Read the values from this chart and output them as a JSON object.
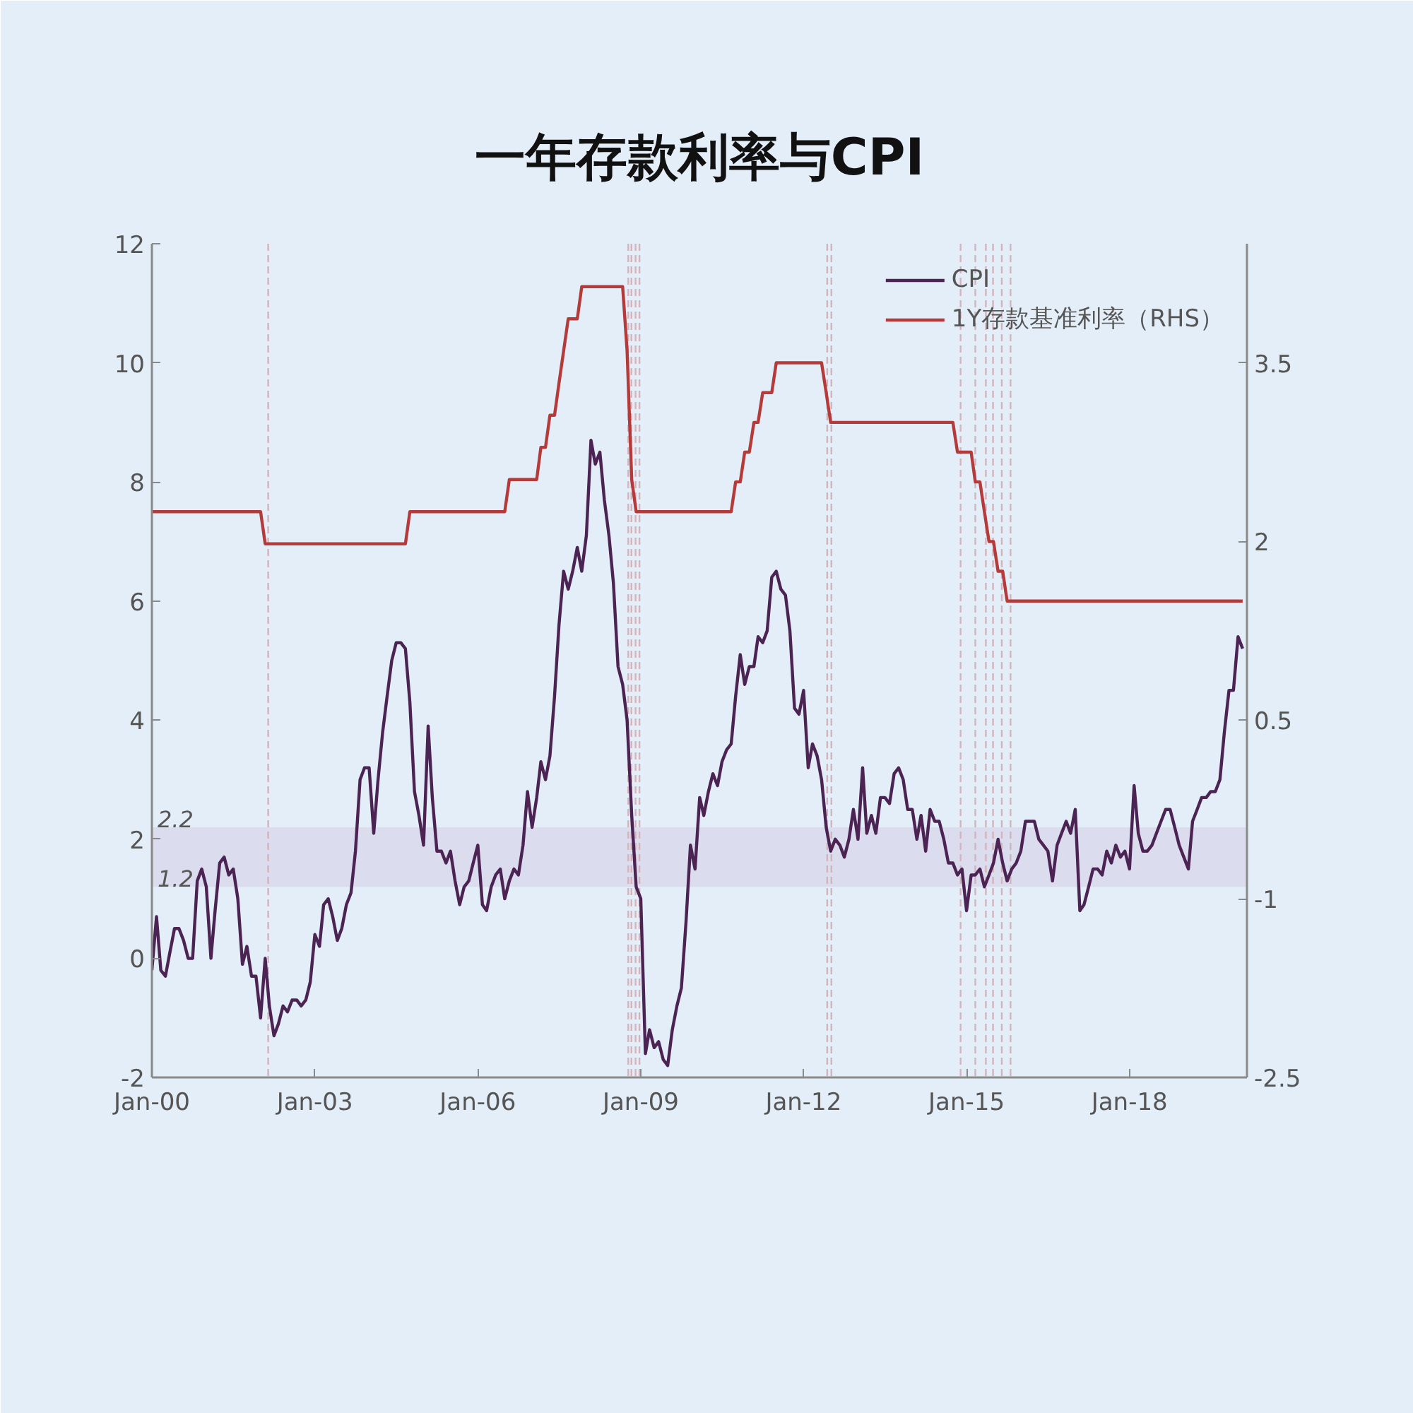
{
  "chart_data": {
    "type": "line",
    "title": "一年存款利率与CPI",
    "x": [
      "2000-01",
      "2000-02",
      "2000-03",
      "2000-04",
      "2000-05",
      "2000-06",
      "2000-07",
      "2000-08",
      "2000-09",
      "2000-10",
      "2000-11",
      "2000-12",
      "2001-01",
      "2001-02",
      "2001-03",
      "2001-04",
      "2001-05",
      "2001-06",
      "2001-07",
      "2001-08",
      "2001-09",
      "2001-10",
      "2001-11",
      "2001-12",
      "2002-01",
      "2002-02",
      "2002-03",
      "2002-04",
      "2002-05",
      "2002-06",
      "2002-07",
      "2002-08",
      "2002-09",
      "2002-10",
      "2002-11",
      "2002-12",
      "2003-01",
      "2003-02",
      "2003-03",
      "2003-04",
      "2003-05",
      "2003-06",
      "2003-07",
      "2003-08",
      "2003-09",
      "2003-10",
      "2003-11",
      "2003-12",
      "2004-01",
      "2004-02",
      "2004-03",
      "2004-04",
      "2004-05",
      "2004-06",
      "2004-07",
      "2004-08",
      "2004-09",
      "2004-10",
      "2004-11",
      "2004-12",
      "2005-01",
      "2005-02",
      "2005-03",
      "2005-04",
      "2005-05",
      "2005-06",
      "2005-07",
      "2005-08",
      "2005-09",
      "2005-10",
      "2005-11",
      "2005-12",
      "2006-01",
      "2006-02",
      "2006-03",
      "2006-04",
      "2006-05",
      "2006-06",
      "2006-07",
      "2006-08",
      "2006-09",
      "2006-10",
      "2006-11",
      "2006-12",
      "2007-01",
      "2007-02",
      "2007-03",
      "2007-04",
      "2007-05",
      "2007-06",
      "2007-07",
      "2007-08",
      "2007-09",
      "2007-10",
      "2007-11",
      "2007-12",
      "2008-01",
      "2008-02",
      "2008-03",
      "2008-04",
      "2008-05",
      "2008-06",
      "2008-07",
      "2008-08",
      "2008-09",
      "2008-10",
      "2008-11",
      "2008-12",
      "2009-01",
      "2009-02",
      "2009-03",
      "2009-04",
      "2009-05",
      "2009-06",
      "2009-07",
      "2009-08",
      "2009-09",
      "2009-10",
      "2009-11",
      "2009-12",
      "2010-01",
      "2010-02",
      "2010-03",
      "2010-04",
      "2010-05",
      "2010-06",
      "2010-07",
      "2010-08",
      "2010-09",
      "2010-10",
      "2010-11",
      "2010-12",
      "2011-01",
      "2011-02",
      "2011-03",
      "2011-04",
      "2011-05",
      "2011-06",
      "2011-07",
      "2011-08",
      "2011-09",
      "2011-10",
      "2011-11",
      "2011-12",
      "2012-01",
      "2012-02",
      "2012-03",
      "2012-04",
      "2012-05",
      "2012-06",
      "2012-07",
      "2012-08",
      "2012-09",
      "2012-10",
      "2012-11",
      "2012-12",
      "2013-01",
      "2013-02",
      "2013-03",
      "2013-04",
      "2013-05",
      "2013-06",
      "2013-07",
      "2013-08",
      "2013-09",
      "2013-10",
      "2013-11",
      "2013-12",
      "2014-01",
      "2014-02",
      "2014-03",
      "2014-04",
      "2014-05",
      "2014-06",
      "2014-07",
      "2014-08",
      "2014-09",
      "2014-10",
      "2014-11",
      "2014-12",
      "2015-01",
      "2015-02",
      "2015-03",
      "2015-04",
      "2015-05",
      "2015-06",
      "2015-07",
      "2015-08",
      "2015-09",
      "2015-10",
      "2015-11",
      "2015-12",
      "2016-01",
      "2016-02",
      "2016-03",
      "2016-04",
      "2016-05",
      "2016-06",
      "2016-07",
      "2016-08",
      "2016-09",
      "2016-10",
      "2016-11",
      "2016-12",
      "2017-01",
      "2017-02",
      "2017-03",
      "2017-04",
      "2017-05",
      "2017-06",
      "2017-07",
      "2017-08",
      "2017-09",
      "2017-10",
      "2017-11",
      "2017-12",
      "2018-01",
      "2018-02",
      "2018-03",
      "2018-04",
      "2018-05",
      "2018-06",
      "2018-07",
      "2018-08",
      "2018-09",
      "2018-10",
      "2018-11",
      "2018-12",
      "2019-01",
      "2019-02",
      "2019-03",
      "2019-04",
      "2019-05",
      "2019-06",
      "2019-07",
      "2019-08",
      "2019-09",
      "2019-10",
      "2019-11",
      "2019-12",
      "2020-01",
      "2020-02"
    ],
    "series": [
      {
        "name": "CPI",
        "color": "#4b2453",
        "values": [
          -0.2,
          0.7,
          -0.2,
          -0.3,
          0.1,
          0.5,
          0.5,
          0.3,
          0.0,
          0.0,
          1.3,
          1.5,
          1.2,
          0.0,
          0.8,
          1.6,
          1.7,
          1.4,
          1.5,
          1.0,
          -0.1,
          0.2,
          -0.3,
          -0.3,
          -1.0,
          0.0,
          -0.8,
          -1.3,
          -1.1,
          -0.8,
          -0.9,
          -0.7,
          -0.7,
          -0.8,
          -0.7,
          -0.4,
          0.4,
          0.2,
          0.9,
          1.0,
          0.7,
          0.3,
          0.5,
          0.9,
          1.1,
          1.8,
          3.0,
          3.2,
          3.2,
          2.1,
          3.0,
          3.8,
          4.4,
          5.0,
          5.3,
          5.3,
          5.2,
          4.3,
          2.8,
          2.4,
          1.9,
          3.9,
          2.7,
          1.8,
          1.8,
          1.6,
          1.8,
          1.3,
          0.9,
          1.2,
          1.3,
          1.6,
          1.9,
          0.9,
          0.8,
          1.2,
          1.4,
          1.5,
          1.0,
          1.3,
          1.5,
          1.4,
          1.9,
          2.8,
          2.2,
          2.7,
          3.3,
          3.0,
          3.4,
          4.4,
          5.6,
          6.5,
          6.2,
          6.5,
          6.9,
          6.5,
          7.1,
          8.7,
          8.3,
          8.5,
          7.7,
          7.1,
          6.3,
          4.9,
          4.6,
          4.0,
          2.4,
          1.2,
          1.0,
          -1.6,
          -1.2,
          -1.5,
          -1.4,
          -1.7,
          -1.8,
          -1.2,
          -0.8,
          -0.5,
          0.6,
          1.9,
          1.5,
          2.7,
          2.4,
          2.8,
          3.1,
          2.9,
          3.3,
          3.5,
          3.6,
          4.4,
          5.1,
          4.6,
          4.9,
          4.9,
          5.4,
          5.3,
          5.5,
          6.4,
          6.5,
          6.2,
          6.1,
          5.5,
          4.2,
          4.1,
          4.5,
          3.2,
          3.6,
          3.4,
          3.0,
          2.2,
          1.8,
          2.0,
          1.9,
          1.7,
          2.0,
          2.5,
          2.0,
          3.2,
          2.1,
          2.4,
          2.1,
          2.7,
          2.7,
          2.6,
          3.1,
          3.2,
          3.0,
          2.5,
          2.5,
          2.0,
          2.4,
          1.8,
          2.5,
          2.3,
          2.3,
          2.0,
          1.6,
          1.6,
          1.4,
          1.5,
          0.8,
          1.4,
          1.4,
          1.5,
          1.2,
          1.4,
          1.6,
          2.0,
          1.6,
          1.3,
          1.5,
          1.6,
          1.8,
          2.3,
          2.3,
          2.3,
          2.0,
          1.9,
          1.8,
          1.3,
          1.9,
          2.1,
          2.3,
          2.1,
          2.5,
          0.8,
          0.9,
          1.2,
          1.5,
          1.5,
          1.4,
          1.8,
          1.6,
          1.9,
          1.7,
          1.8,
          1.5,
          2.9,
          2.1,
          1.8,
          1.8,
          1.9,
          2.1,
          2.3,
          2.5,
          2.5,
          2.2,
          1.9,
          1.7,
          1.5,
          2.3,
          2.5,
          2.7,
          2.7,
          2.8,
          2.8,
          3.0,
          3.8,
          4.5,
          4.5,
          5.4,
          5.2
        ]
      },
      {
        "name": "1Y存款基准利率（RHS）",
        "color": "#b53a3a",
        "axis": "y2",
        "x": [
          "2000-01",
          "2002-01",
          "2002-02",
          "2004-09",
          "2004-10",
          "2006-07",
          "2006-08",
          "2007-02",
          "2007-03",
          "2007-04",
          "2007-05",
          "2007-06",
          "2007-07",
          "2007-08",
          "2007-09",
          "2007-11",
          "2007-12",
          "2008-09",
          "2008-10",
          "2008-11",
          "2008-12",
          "2010-09",
          "2010-10",
          "2010-11",
          "2010-12",
          "2011-01",
          "2011-02",
          "2011-03",
          "2011-04",
          "2011-06",
          "2011-07",
          "2012-05",
          "2012-06",
          "2012-07",
          "2014-10",
          "2014-11",
          "2015-02",
          "2015-03",
          "2015-04",
          "2015-05",
          "2015-06",
          "2015-07",
          "2015-08",
          "2015-09",
          "2015-10",
          "2020-02"
        ],
        "values": [
          2.25,
          2.25,
          1.98,
          1.98,
          2.25,
          2.25,
          2.52,
          2.52,
          2.79,
          2.79,
          3.06,
          3.06,
          3.33,
          3.6,
          3.87,
          3.87,
          4.14,
          4.14,
          3.6,
          2.52,
          2.25,
          2.25,
          2.5,
          2.5,
          2.75,
          2.75,
          3.0,
          3.0,
          3.25,
          3.25,
          3.5,
          3.5,
          3.25,
          3.0,
          3.0,
          2.75,
          2.75,
          2.5,
          2.5,
          2.25,
          2.0,
          2.0,
          1.75,
          1.75,
          1.5,
          1.5
        ]
      }
    ],
    "xlim": [
      "2000-01",
      "2020-03"
    ],
    "xticks": [
      {
        "value": "2000-01",
        "label": "Jan-00"
      },
      {
        "value": "2003-01",
        "label": "Jan-03"
      },
      {
        "value": "2006-01",
        "label": "Jan-06"
      },
      {
        "value": "2009-01",
        "label": "Jan-09"
      },
      {
        "value": "2012-01",
        "label": "Jan-12"
      },
      {
        "value": "2015-01",
        "label": "Jan-15"
      },
      {
        "value": "2018-01",
        "label": "Jan-18"
      }
    ],
    "ylim": [
      -2,
      12
    ],
    "yticks": [
      -2,
      0,
      2,
      4,
      6,
      8,
      10,
      12
    ],
    "y2lim": [
      -2.5,
      4.5
    ],
    "y2ticks": [
      -2.5,
      -1,
      0.5,
      2,
      3.5
    ],
    "bands": [
      {
        "axis": "y",
        "from": 1.2,
        "to": 2.2,
        "color": "#d9d7ec"
      }
    ],
    "ref_lines": [
      {
        "axis": "x",
        "value": "2002-02-21",
        "color": "#d2b4bc",
        "line_style": "dashed"
      },
      {
        "axis": "x",
        "value": "2008-10-09",
        "color": "#d2b4bc",
        "line_style": "dashed"
      },
      {
        "axis": "x",
        "value": "2008-10-30",
        "color": "#d2b4bc",
        "line_style": "dashed"
      },
      {
        "axis": "x",
        "value": "2008-11-27",
        "color": "#d2b4bc",
        "line_style": "dashed"
      },
      {
        "axis": "x",
        "value": "2008-12-23",
        "color": "#d2b4bc",
        "line_style": "dashed"
      },
      {
        "axis": "x",
        "value": "2012-06-08",
        "color": "#d2b4bc",
        "line_style": "dashed"
      },
      {
        "axis": "x",
        "value": "2012-07-06",
        "color": "#d2b4bc",
        "line_style": "dashed"
      },
      {
        "axis": "x",
        "value": "2014-11-22",
        "color": "#d2b4bc",
        "line_style": "dashed"
      },
      {
        "axis": "x",
        "value": "2015-03-01",
        "color": "#d2b4bc",
        "line_style": "dashed"
      },
      {
        "axis": "x",
        "value": "2015-05-11",
        "color": "#d2b4bc",
        "line_style": "dashed"
      },
      {
        "axis": "x",
        "value": "2015-06-28",
        "color": "#d2b4bc",
        "line_style": "dashed"
      },
      {
        "axis": "x",
        "value": "2015-08-26",
        "color": "#d2b4bc",
        "line_style": "dashed"
      },
      {
        "axis": "x",
        "value": "2015-10-24",
        "color": "#d2b4bc",
        "line_style": "dashed"
      }
    ],
    "annotations": [
      {
        "text": "2.2",
        "x": "2000-01",
        "y": 2.2
      },
      {
        "text": "1.2",
        "x": "2000-01",
        "y": 1.2
      }
    ],
    "legend": "top right"
  }
}
